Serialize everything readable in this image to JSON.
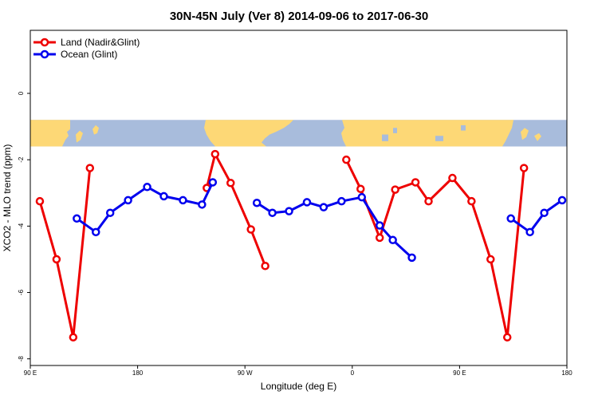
{
  "chart_data": {
    "type": "line",
    "title": "30N-45N July (Ver 8)   2014-09-06 to 2017-06-30",
    "xlabel": "Longitude (deg E)",
    "ylabel": "XCO2 - MLO trend (ppm)",
    "x_unit": "deg E (unwrapped, 90 to 540)",
    "xlim": [
      90,
      540
    ],
    "ylim": [
      -8.2,
      1.9
    ],
    "x_ticks": [
      {
        "value": 90,
        "label": "90 E"
      },
      {
        "value": 180,
        "label": "180"
      },
      {
        "value": 270,
        "label": "90 W"
      },
      {
        "value": 360,
        "label": "0"
      },
      {
        "value": 450,
        "label": "90 E"
      },
      {
        "value": 540,
        "label": "180"
      }
    ],
    "y_ticks": [
      {
        "value": 0,
        "label": "0"
      },
      {
        "value": -2,
        "label": "-2"
      },
      {
        "value": -4,
        "label": "-4"
      },
      {
        "value": -6,
        "label": "-6"
      },
      {
        "value": -8,
        "label": "-8"
      }
    ],
    "map_band": {
      "y_top": -0.8,
      "y_bottom": -1.6,
      "land_color": "#FDD876",
      "ocean_color": "#A8BCDC"
    },
    "legend": {
      "position": "top-left"
    },
    "series": [
      {
        "name": "Land (Nadir&Glint)",
        "color": "#EE0000",
        "segments": [
          [
            [
              98,
              -3.25
            ],
            [
              112,
              -5.0
            ],
            [
              126,
              -7.35
            ],
            [
              140,
              -2.25
            ]
          ],
          [
            [
              238,
              -2.85
            ],
            [
              245,
              -1.83
            ],
            [
              258,
              -2.7
            ],
            [
              275,
              -4.1
            ],
            [
              287,
              -5.2
            ]
          ],
          [
            [
              355,
              -2.0
            ],
            [
              367,
              -2.88
            ],
            [
              383,
              -4.35
            ],
            [
              396,
              -2.9
            ],
            [
              413,
              -2.68
            ],
            [
              424,
              -3.25
            ],
            [
              444,
              -2.55
            ],
            [
              460,
              -3.25
            ],
            [
              476,
              -5.0
            ],
            [
              490,
              -7.35
            ],
            [
              504,
              -2.25
            ]
          ]
        ]
      },
      {
        "name": "Ocean (Glint)",
        "color": "#0000EE",
        "segments": [
          [
            [
              129,
              -3.77
            ],
            [
              145,
              -4.18
            ],
            [
              157,
              -3.6
            ],
            [
              172,
              -3.22
            ],
            [
              188,
              -2.82
            ],
            [
              202,
              -3.1
            ],
            [
              218,
              -3.22
            ],
            [
              234,
              -3.35
            ],
            [
              243,
              -2.68
            ]
          ],
          [
            [
              280,
              -3.3
            ],
            [
              293,
              -3.6
            ],
            [
              307,
              -3.55
            ],
            [
              322,
              -3.28
            ],
            [
              336,
              -3.43
            ],
            [
              351,
              -3.25
            ],
            [
              368,
              -3.13
            ],
            [
              383,
              -3.98
            ],
            [
              394,
              -4.42
            ],
            [
              410,
              -4.95
            ]
          ],
          [
            [
              493,
              -3.77
            ],
            [
              509,
              -4.18
            ],
            [
              521,
              -3.6
            ],
            [
              536,
              -3.22
            ]
          ]
        ]
      }
    ]
  }
}
